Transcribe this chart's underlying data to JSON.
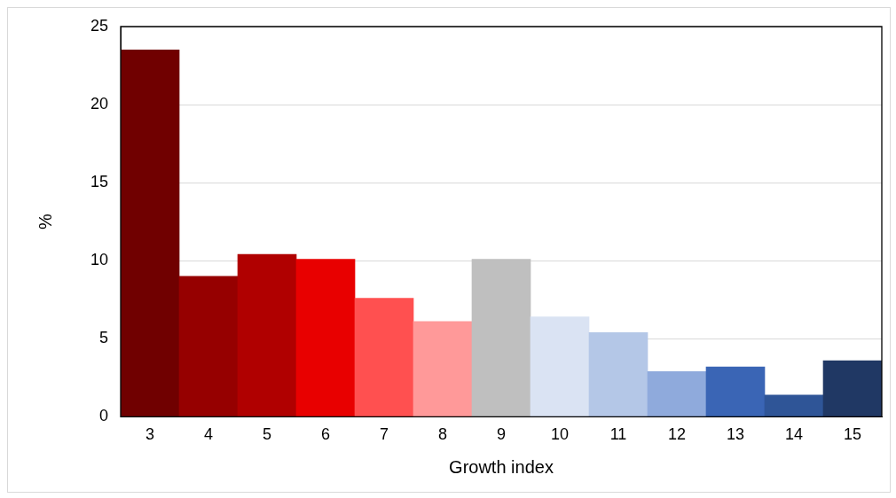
{
  "chart_data": {
    "type": "bar",
    "xlabel": "Growth index",
    "ylabel": "%",
    "categories": [
      "3",
      "4",
      "5",
      "6",
      "7",
      "8",
      "9",
      "10",
      "11",
      "12",
      "13",
      "14",
      "15"
    ],
    "values": [
      23.5,
      9.0,
      10.4,
      10.1,
      7.6,
      6.1,
      10.1,
      6.4,
      5.4,
      2.9,
      3.2,
      1.4,
      3.6
    ],
    "colors": [
      "#700000",
      "#960000",
      "#b00000",
      "#e80000",
      "#ff5050",
      "#ff9999",
      "#bfbfbf",
      "#dae3f3",
      "#b4c7e7",
      "#8faadc",
      "#3a65b5",
      "#2f5597",
      "#203864"
    ],
    "ylim": [
      0,
      25
    ],
    "yticks": [
      0,
      5,
      10,
      15,
      20,
      25
    ],
    "grid": "y",
    "legend": false
  }
}
